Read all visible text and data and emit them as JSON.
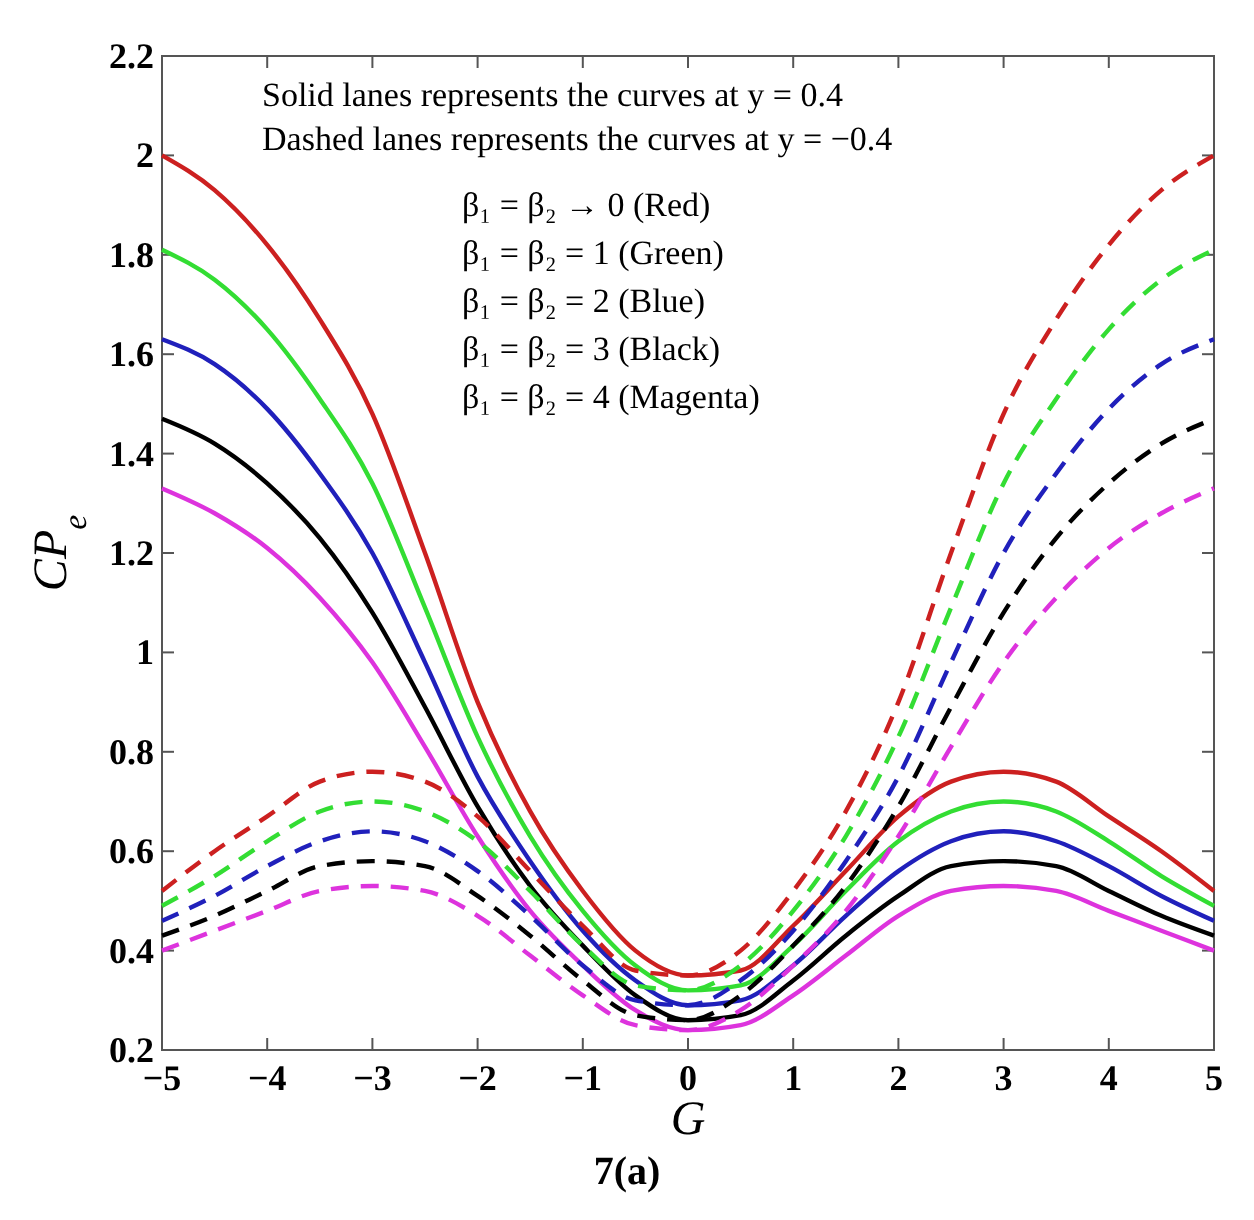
{
  "chart_data": {
    "type": "line",
    "xlabel": "G",
    "ylabel": "CP$_{e}$",
    "x": [
      -5,
      -4.5,
      -4,
      -3.5,
      -3,
      -2.5,
      -2,
      -1.5,
      -1,
      -0.5,
      0,
      0.5,
      1,
      1.5,
      2,
      2.5,
      3,
      3.5,
      4,
      4.5,
      5
    ],
    "xlim": [
      -5,
      5
    ],
    "xticks": [
      -5,
      -4,
      -3,
      -2,
      -1,
      0,
      1,
      2,
      3,
      4,
      5
    ],
    "ylim": [
      0.2,
      2.2
    ],
    "yticks": [
      0.2,
      0.4,
      0.6,
      0.8,
      1,
      1.2,
      1.4,
      1.6,
      1.8,
      2,
      2.2
    ],
    "grid": false,
    "marker": "none",
    "series": [
      {
        "color": "#cc2020",
        "line_style": "solid",
        "values": [
          2.0,
          1.93,
          1.82,
          1.67,
          1.48,
          1.2,
          0.9,
          0.68,
          0.52,
          0.4,
          0.35,
          0.36,
          0.45,
          0.56,
          0.67,
          0.74,
          0.76,
          0.74,
          0.67,
          0.6,
          0.52
        ]
      },
      {
        "color": "#33dd33",
        "line_style": "solid",
        "values": [
          1.81,
          1.75,
          1.65,
          1.51,
          1.34,
          1.09,
          0.83,
          0.63,
          0.48,
          0.37,
          0.32,
          0.33,
          0.41,
          0.52,
          0.62,
          0.68,
          0.7,
          0.68,
          0.62,
          0.55,
          0.49
        ]
      },
      {
        "color": "#2020bb",
        "line_style": "solid",
        "values": [
          1.63,
          1.58,
          1.49,
          1.36,
          1.2,
          0.98,
          0.75,
          0.58,
          0.44,
          0.34,
          0.29,
          0.3,
          0.37,
          0.47,
          0.56,
          0.62,
          0.64,
          0.62,
          0.57,
          0.51,
          0.46
        ]
      },
      {
        "color": "#000000",
        "line_style": "solid",
        "values": [
          1.47,
          1.42,
          1.34,
          1.23,
          1.08,
          0.89,
          0.69,
          0.53,
          0.41,
          0.31,
          0.26,
          0.27,
          0.34,
          0.43,
          0.51,
          0.57,
          0.58,
          0.57,
          0.52,
          0.47,
          0.43
        ]
      },
      {
        "color": "#dd33dd",
        "line_style": "solid",
        "values": [
          1.33,
          1.28,
          1.21,
          1.11,
          0.98,
          0.81,
          0.63,
          0.48,
          0.37,
          0.28,
          0.24,
          0.25,
          0.31,
          0.39,
          0.47,
          0.52,
          0.53,
          0.52,
          0.48,
          0.44,
          0.4
        ]
      },
      {
        "color": "#cc2020",
        "line_style": "dashed",
        "values": [
          0.52,
          0.6,
          0.67,
          0.74,
          0.76,
          0.74,
          0.67,
          0.56,
          0.45,
          0.36,
          0.35,
          0.4,
          0.52,
          0.68,
          0.9,
          1.2,
          1.48,
          1.67,
          1.82,
          1.93,
          2.0
        ]
      },
      {
        "color": "#33dd33",
        "line_style": "dashed",
        "values": [
          0.49,
          0.55,
          0.62,
          0.68,
          0.7,
          0.68,
          0.62,
          0.52,
          0.41,
          0.33,
          0.32,
          0.37,
          0.48,
          0.63,
          0.83,
          1.09,
          1.34,
          1.51,
          1.65,
          1.75,
          1.81
        ]
      },
      {
        "color": "#2020bb",
        "line_style": "dashed",
        "values": [
          0.46,
          0.51,
          0.57,
          0.62,
          0.64,
          0.62,
          0.56,
          0.47,
          0.37,
          0.3,
          0.29,
          0.34,
          0.44,
          0.58,
          0.75,
          0.98,
          1.2,
          1.36,
          1.49,
          1.58,
          1.63
        ]
      },
      {
        "color": "#000000",
        "line_style": "dashed",
        "values": [
          0.43,
          0.47,
          0.52,
          0.57,
          0.58,
          0.57,
          0.51,
          0.43,
          0.34,
          0.27,
          0.26,
          0.31,
          0.41,
          0.53,
          0.69,
          0.89,
          1.08,
          1.23,
          1.34,
          1.42,
          1.47
        ]
      },
      {
        "color": "#dd33dd",
        "line_style": "dashed",
        "values": [
          0.4,
          0.44,
          0.48,
          0.52,
          0.53,
          0.52,
          0.47,
          0.39,
          0.31,
          0.25,
          0.24,
          0.28,
          0.37,
          0.48,
          0.63,
          0.81,
          0.98,
          1.11,
          1.21,
          1.28,
          1.33
        ]
      }
    ],
    "annotations": [
      "Solid lanes represents the curves at y = 0.4",
      "Dashed lanes represents the curves at y = −0.4",
      "β₁ = β₂ → 0 (Red)",
      "β₁ = β₂ = 1 (Green)",
      "β₁ = β₂ = 2 (Blue)",
      "β₁ = β₂ = 3 (Black)",
      "β₁ = β₂ = 4 (Magenta)",
      "7(a)"
    ]
  }
}
